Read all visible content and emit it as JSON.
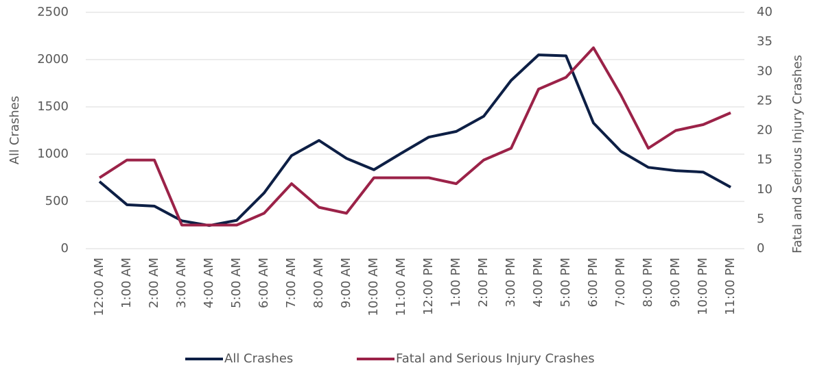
{
  "chart_data": {
    "type": "line",
    "categories": [
      "12:00 AM",
      "1:00 AM",
      "2:00 AM",
      "3:00 AM",
      "4:00 AM",
      "5:00 AM",
      "6:00 AM",
      "7:00 AM",
      "8:00 AM",
      "9:00 AM",
      "10:00 AM",
      "11:00 AM",
      "12:00 PM",
      "1:00 PM",
      "2:00 PM",
      "3:00 PM",
      "4:00 PM",
      "5:00 PM",
      "6:00 PM",
      "7:00 PM",
      "8:00 PM",
      "9:00 PM",
      "10:00 PM",
      "11:00 PM"
    ],
    "series": [
      {
        "name": "All Crashes",
        "color": "#0d1f45",
        "values": [
          710,
          465,
          450,
          295,
          245,
          300,
          590,
          985,
          1145,
          955,
          835,
          1010,
          1180,
          1240,
          1400,
          1780,
          2050,
          2040,
          1330,
          1030,
          860,
          825,
          810,
          650
        ]
      },
      {
        "name": "Fatal and Serious Injury Crashes",
        "color": "#9b2248",
        "axis": "y2",
        "values": [
          12,
          15,
          15,
          4,
          4,
          4,
          6,
          11,
          7,
          6,
          12,
          12,
          12,
          11,
          15,
          17,
          27,
          29,
          34,
          26,
          17,
          20,
          21,
          23
        ]
      }
    ],
    "ylabel": "All Crashes",
    "y2label": "Fatal and Serious Injury Crashes",
    "ylim": [
      0,
      2500
    ],
    "yticks": [
      0,
      500,
      1000,
      1500,
      2000,
      2500
    ],
    "y2lim": [
      0,
      40
    ],
    "y2ticks": [
      0,
      5,
      10,
      15,
      20,
      25,
      30,
      35,
      40
    ],
    "grid": true,
    "legend": "bottom"
  }
}
